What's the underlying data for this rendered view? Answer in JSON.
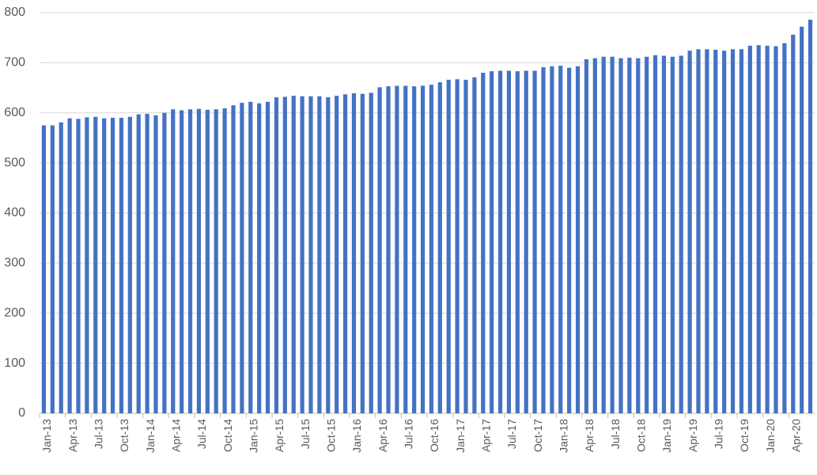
{
  "chart_data": {
    "type": "bar",
    "color": "#4472c4",
    "grid": true,
    "categories": [
      "Jan-13",
      null,
      null,
      "Apr-13",
      null,
      null,
      "Jul-13",
      null,
      null,
      "Oct-13",
      null,
      null,
      "Jan-14",
      null,
      null,
      "Apr-14",
      null,
      null,
      "Jul-14",
      null,
      null,
      "Oct-14",
      null,
      null,
      "Jan-15",
      null,
      null,
      "Apr-15",
      null,
      null,
      "Jul-15",
      null,
      null,
      "Oct-15",
      null,
      null,
      "Jan-16",
      null,
      null,
      "Apr-16",
      null,
      null,
      "Jul-16",
      null,
      null,
      "Oct-16",
      null,
      null,
      "Jan-17",
      null,
      null,
      "Apr-17",
      null,
      null,
      "Jul-17",
      null,
      null,
      "Oct-17",
      null,
      null,
      "Jan-18",
      null,
      null,
      "Apr-18",
      null,
      null,
      "Jul-18",
      null,
      null,
      "Oct-18",
      null,
      null,
      "Jan-19",
      null,
      null,
      "Apr-19",
      null,
      null,
      "Jul-19",
      null,
      null,
      "Oct-19",
      null,
      null,
      "Jan-20",
      null,
      null,
      "Apr-20",
      null,
      null
    ],
    "values": [
      575,
      575,
      581,
      589,
      588,
      591,
      592,
      589,
      590,
      590,
      592,
      597,
      598,
      595,
      600,
      607,
      605,
      607,
      608,
      606,
      607,
      609,
      615,
      620,
      622,
      619,
      622,
      631,
      632,
      634,
      633,
      633,
      633,
      631,
      634,
      637,
      639,
      638,
      640,
      651,
      653,
      654,
      654,
      653,
      654,
      656,
      661,
      666,
      667,
      666,
      671,
      680,
      683,
      684,
      684,
      683,
      684,
      684,
      691,
      693,
      694,
      690,
      693,
      707,
      709,
      712,
      712,
      709,
      710,
      709,
      712,
      715,
      714,
      712,
      714,
      724,
      727,
      727,
      726,
      724,
      727,
      727,
      734,
      735,
      734,
      733,
      739,
      756,
      772,
      786
    ],
    "ylim": [
      0,
      800
    ],
    "yticks": [
      0,
      100,
      200,
      300,
      400,
      500,
      600,
      700,
      800
    ]
  }
}
